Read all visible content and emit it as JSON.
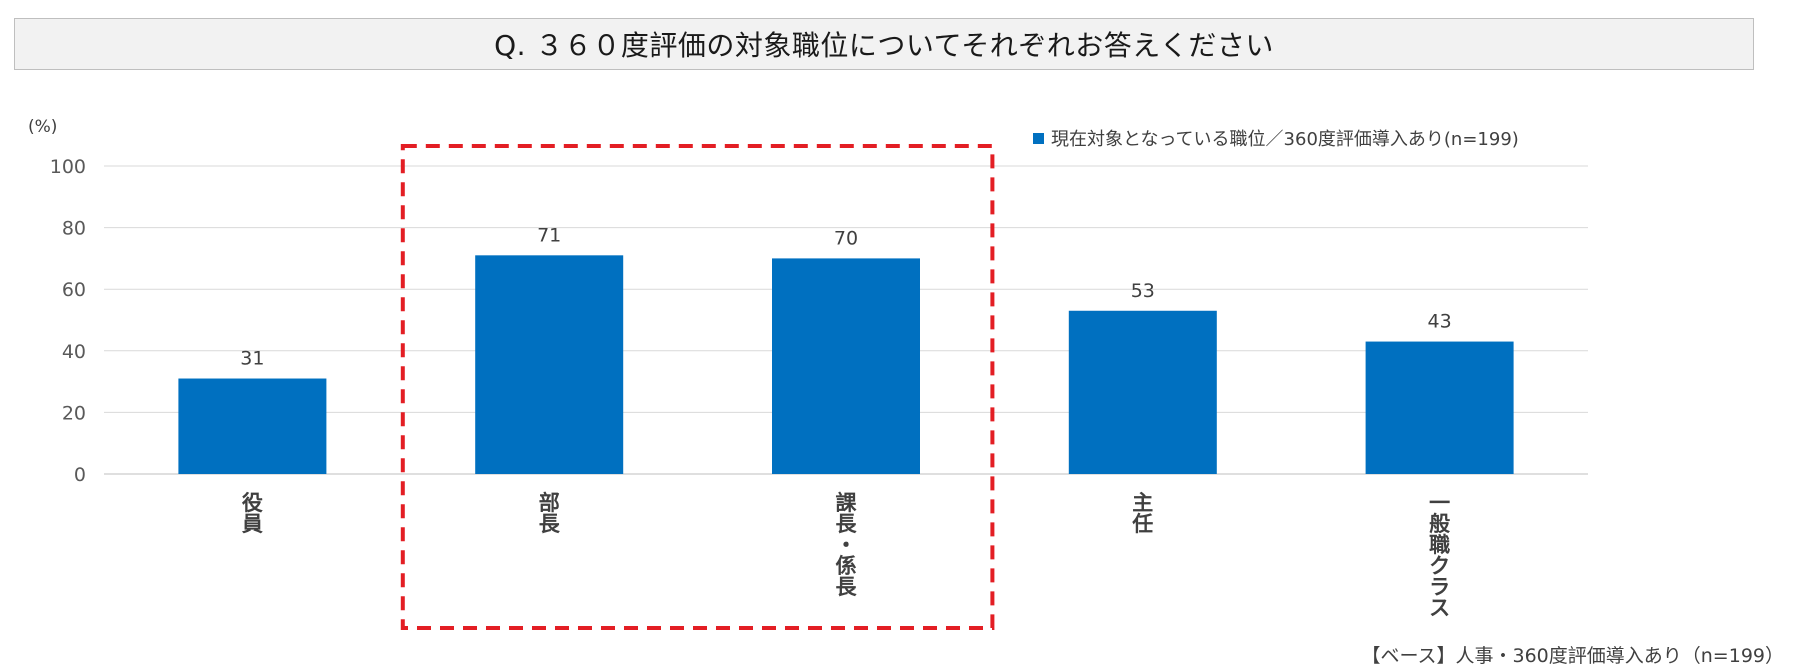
{
  "title": "Q. ３６０度評価の対象職位についてそれぞれお答えください",
  "footnote": "【ベース】人事・360度評価導入あり（n=199）",
  "colors": {
    "bar": "#0070c0",
    "highlight_box": "#e31e24",
    "grid": "#d9d9d9"
  },
  "chart_data": {
    "type": "bar",
    "categories": [
      "役員",
      "部長",
      "課長・係長",
      "主任",
      "一般職クラス"
    ],
    "series": [
      {
        "name": "現在対象となっている職位／360度評価導入あり(n=199)",
        "values": [
          31,
          71,
          70,
          53,
          43
        ]
      }
    ],
    "data_labels": [
      "31",
      "71",
      "70",
      "53",
      "43"
    ],
    "ylabel": "(%)",
    "ylim": [
      0,
      100
    ],
    "yticks": [
      0,
      20,
      40,
      60,
      80,
      100
    ],
    "grid": true,
    "legend": "top-right",
    "highlighted_categories": [
      "部長",
      "課長・係長"
    ]
  }
}
